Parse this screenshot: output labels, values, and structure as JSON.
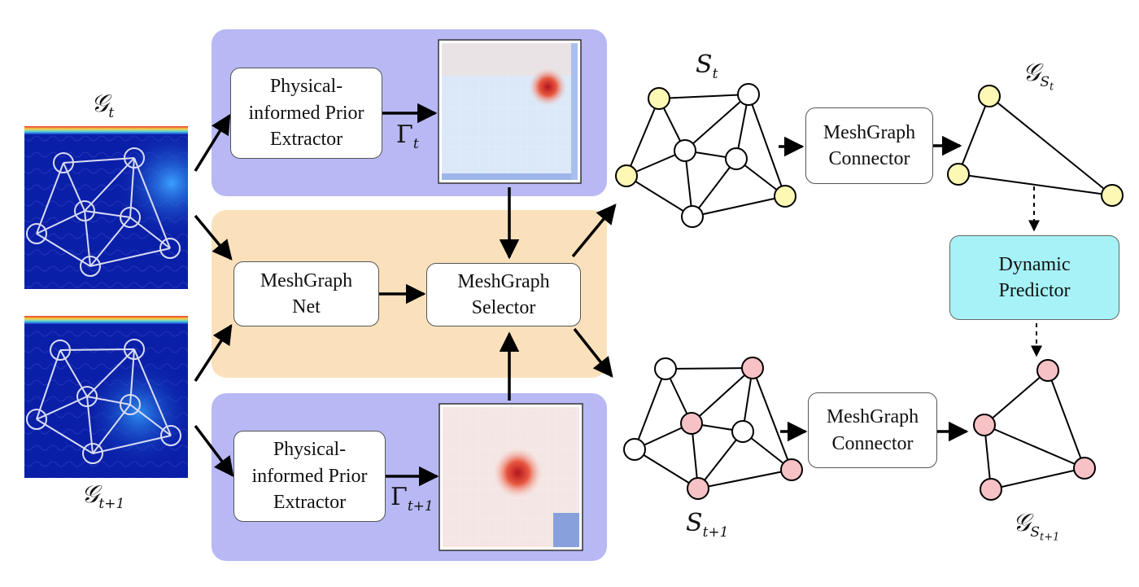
{
  "colors": {
    "prior_panel": "#b7b8f4",
    "selector_panel": "#fbe1bb",
    "predictor_fill": "#a6f2f6",
    "node_yellow": "#fdf8b4",
    "node_pink": "#f7c2c6",
    "field_blue": "#0a1fa8",
    "heat_red": "#d7392b"
  },
  "boxes": {
    "prior_top": "Physical-\ninformed Prior\nExtractor",
    "prior_bottom": "Physical-\ninformed Prior\nExtractor",
    "meshgraph_net": "MeshGraph\nNet",
    "meshgraph_selector": "MeshGraph\nSelector",
    "connector_top": "MeshGraph\nConnector",
    "connector_bottom": "MeshGraph\nConnector",
    "dynamic_predictor": "Dynamic\nPredictor"
  },
  "labels": {
    "g_t": {
      "main": "𝒢",
      "sub": "t"
    },
    "g_t1": {
      "main": "𝒢",
      "sub": "t+1"
    },
    "gamma_t": {
      "main": "Γ",
      "sub": "t"
    },
    "gamma_t1": {
      "main": "Γ",
      "sub": "t+1"
    },
    "s_t": {
      "main": "S",
      "sub": "t"
    },
    "s_t1": {
      "main": "S",
      "sub": "t+1"
    },
    "gs_t": {
      "main": "𝒢",
      "sub": "S",
      "subsub": "t"
    },
    "gs_t1": {
      "main": "𝒢",
      "sub": "S",
      "subsub": "t+1"
    }
  },
  "icons": {
    "flow_field_top": "flow-field-image",
    "flow_field_bottom": "flow-field-image",
    "heatmap_top": "heatmap-image",
    "heatmap_bottom": "heatmap-image"
  }
}
